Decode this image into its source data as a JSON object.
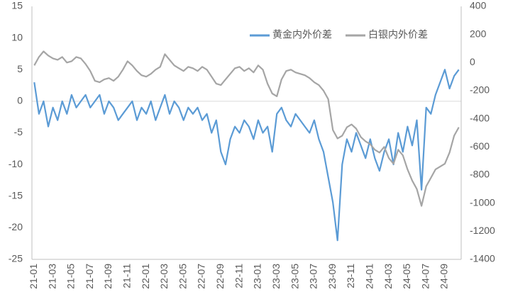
{
  "chart_data": {
    "type": "line",
    "categories": [
      "21-01",
      null,
      null,
      null,
      "21-03",
      null,
      null,
      null,
      "21-05",
      null,
      null,
      null,
      "21-07",
      null,
      null,
      null,
      "21-09",
      null,
      null,
      null,
      "21-11",
      null,
      null,
      null,
      "22-01",
      null,
      null,
      null,
      "22-03",
      null,
      null,
      null,
      "22-05",
      null,
      null,
      null,
      "22-07",
      null,
      null,
      null,
      "22-09",
      null,
      null,
      null,
      "22-11",
      null,
      null,
      null,
      "23-01",
      null,
      null,
      null,
      "23-03",
      null,
      null,
      null,
      "23-05",
      null,
      null,
      null,
      "23-07",
      null,
      null,
      null,
      "23-09",
      null,
      null,
      null,
      "23-11",
      null,
      null,
      null,
      "24-01",
      null,
      null,
      null,
      "24-03",
      null,
      null,
      null,
      "24-05",
      null,
      null,
      null,
      "24-07",
      null,
      null,
      null,
      "24-09",
      null,
      null,
      null
    ],
    "series": [
      {
        "name": "黄金内外价差",
        "color": "#5b9bd5",
        "values": [
          3,
          -2,
          0,
          -4,
          -1,
          -3,
          0,
          -2,
          1,
          -1,
          0,
          1,
          -1,
          0,
          1,
          -2,
          0,
          -1,
          -3,
          -2,
          -1,
          0,
          -3,
          -1,
          -2,
          0,
          -3,
          -1,
          1,
          -2,
          0,
          -1,
          -3,
          -1,
          -2,
          -1,
          -3,
          -2,
          -5,
          -3,
          -8,
          -10,
          -6,
          -4,
          -5,
          -3,
          -4,
          -6,
          -3,
          -5,
          -4,
          -8,
          -2,
          -1,
          -3,
          -4,
          -2,
          -3,
          -4,
          -5,
          -3,
          -6,
          -8,
          -12,
          -16,
          -22,
          -10,
          -6,
          -8,
          -5,
          -7,
          -9,
          -6,
          -9,
          -11,
          -8,
          -6,
          -10,
          -5,
          -8,
          -4,
          -7,
          -3,
          -14,
          -1,
          -2,
          1,
          3,
          5,
          2,
          4,
          5
        ]
      },
      {
        "name": "白银内外价差",
        "color": "#a5a5a5",
        "axis": "y2",
        "values": [
          -20,
          40,
          80,
          50,
          30,
          20,
          40,
          0,
          10,
          40,
          30,
          -10,
          -60,
          -130,
          -140,
          -120,
          -110,
          -130,
          -100,
          -50,
          10,
          -20,
          -60,
          -90,
          -100,
          -80,
          -50,
          -30,
          60,
          20,
          -20,
          -40,
          -60,
          -30,
          -40,
          -60,
          -30,
          -50,
          -100,
          -150,
          -160,
          -120,
          -80,
          -40,
          -30,
          -60,
          -40,
          -70,
          -20,
          -50,
          -150,
          -220,
          -240,
          -120,
          -60,
          -50,
          -70,
          -80,
          -90,
          -110,
          -140,
          -160,
          -200,
          -260,
          -480,
          -540,
          -520,
          -460,
          -440,
          -470,
          -530,
          -560,
          -580,
          -620,
          -640,
          -600,
          -680,
          -720,
          -620,
          -660,
          -760,
          -840,
          -900,
          -1020,
          -880,
          -820,
          -760,
          -740,
          -720,
          -640,
          -520,
          -460
        ]
      }
    ],
    "ylim": [
      -25,
      15
    ],
    "yticks": [
      -25,
      -20,
      -15,
      -10,
      -5,
      0,
      5,
      10,
      15
    ],
    "y2lim": [
      -1400,
      400
    ],
    "y2ticks": [
      -1400,
      -1200,
      -1000,
      -800,
      -600,
      -400,
      -200,
      0,
      200,
      400
    ],
    "legend": "top-right"
  }
}
